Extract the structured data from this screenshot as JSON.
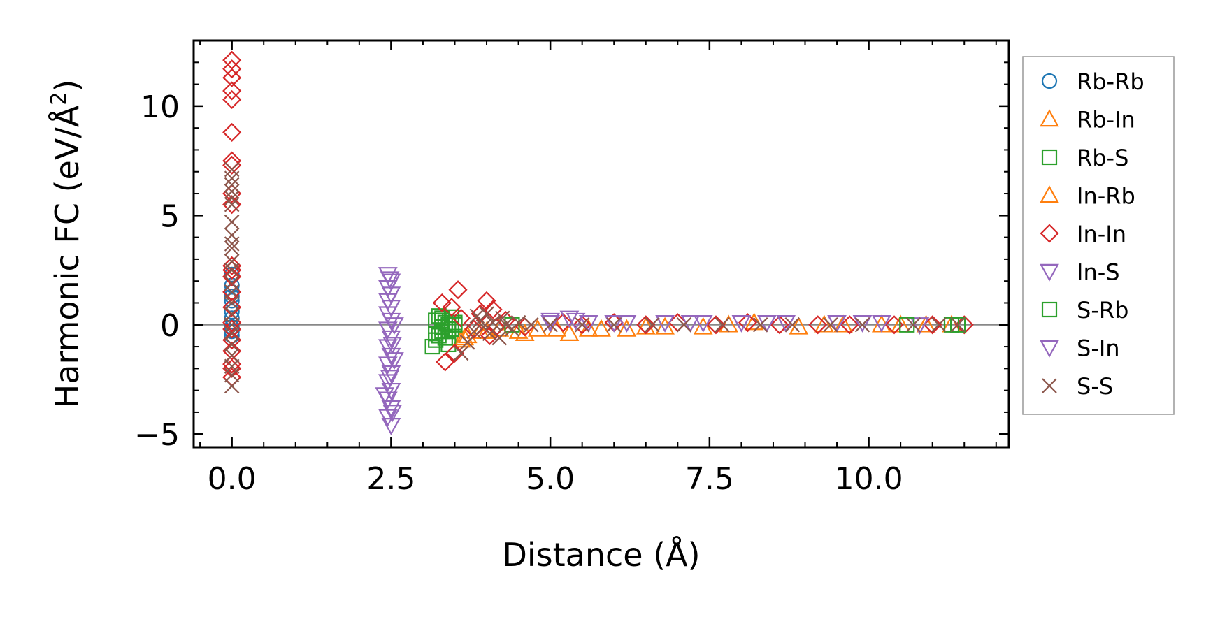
{
  "chart_data": {
    "type": "scatter",
    "xlabel": "Distance (Å)",
    "ylabel_main": "Harmonic FC (eV/Å",
    "ylabel_sup": "2",
    "ylabel_close": ")",
    "xlim": [
      -0.6,
      12.2
    ],
    "ylim": [
      -5.6,
      13.0
    ],
    "xticks": [
      0,
      2.5,
      5,
      7.5,
      10
    ],
    "xtick_labels": [
      "0.0",
      "2.5",
      "5.0",
      "7.5",
      "10.0"
    ],
    "yticks": [
      -5,
      0,
      5,
      10
    ],
    "ytick_labels": [
      "−5",
      "0",
      "5",
      "10"
    ],
    "grid": false,
    "zero_line": true,
    "legend_position": "right outside",
    "colors": {
      "Rb-Rb": "#1f77b4",
      "Rb-In": "#ff7f0e",
      "Rb-S": "#2ca02c",
      "In-Rb": "#ff7f0e",
      "In-In": "#d62728",
      "In-S": "#9467bd",
      "S-Rb": "#2ca02c",
      "S-In": "#9467bd",
      "S-S": "#8c564b",
      "zero_line": "#888888"
    },
    "series": [
      {
        "name": "Rb-Rb",
        "marker": "circle",
        "points": [
          [
            0,
            2.3
          ],
          [
            0,
            1.8
          ],
          [
            0,
            1.5
          ],
          [
            0,
            1.3
          ],
          [
            0,
            1.1
          ],
          [
            0,
            0.6
          ],
          [
            0,
            0.3
          ],
          [
            0,
            -0.1
          ],
          [
            0,
            -0.3
          ],
          [
            0,
            -0.5
          ]
        ]
      },
      {
        "name": "Rb-In",
        "marker": "triangle-up",
        "points": [
          [
            3.6,
            -0.7
          ],
          [
            3.7,
            -0.5
          ],
          [
            3.9,
            -0.3
          ],
          [
            4.2,
            -0.2
          ],
          [
            4.5,
            -0.3
          ],
          [
            4.6,
            -0.4
          ],
          [
            5.1,
            -0.2
          ],
          [
            5.3,
            -0.4
          ],
          [
            5.8,
            -0.2
          ],
          [
            6.2,
            -0.2
          ],
          [
            6.8,
            -0.1
          ],
          [
            7.4,
            -0.1
          ],
          [
            8.2,
            0.1
          ],
          [
            8.9,
            -0.1
          ],
          [
            9.6,
            0.0
          ],
          [
            10.2,
            0.0
          ],
          [
            10.9,
            0.0
          ],
          [
            11.3,
            0.0
          ]
        ]
      },
      {
        "name": "Rb-S",
        "marker": "square",
        "points": [
          [
            3.15,
            -1.0
          ],
          [
            3.2,
            -0.7
          ],
          [
            3.25,
            -0.5
          ],
          [
            3.3,
            -0.3
          ],
          [
            3.3,
            -0.1
          ],
          [
            3.35,
            0.1
          ],
          [
            3.3,
            0.3
          ],
          [
            3.4,
            0.0
          ],
          [
            3.45,
            -0.2
          ],
          [
            3.5,
            0.1
          ],
          [
            3.25,
            0.4
          ],
          [
            3.35,
            -0.6
          ],
          [
            3.4,
            -0.9
          ],
          [
            3.2,
            0.2
          ],
          [
            3.45,
            0.35
          ]
        ]
      },
      {
        "name": "In-Rb",
        "marker": "triangle-up",
        "points": [
          [
            3.65,
            -0.6
          ],
          [
            4.0,
            -0.3
          ],
          [
            4.8,
            -0.2
          ],
          [
            5.6,
            -0.2
          ],
          [
            6.5,
            -0.1
          ],
          [
            7.8,
            0.0
          ],
          [
            9.3,
            0.0
          ],
          [
            10.5,
            0.0
          ]
        ]
      },
      {
        "name": "In-In",
        "marker": "diamond",
        "points": [
          [
            0,
            12.1
          ],
          [
            0,
            11.7
          ],
          [
            0,
            11.3
          ],
          [
            0,
            10.7
          ],
          [
            0,
            10.3
          ],
          [
            0,
            8.8
          ],
          [
            0,
            7.5
          ],
          [
            0,
            7.3
          ],
          [
            0,
            6.0
          ],
          [
            0,
            5.5
          ],
          [
            0,
            2.7
          ],
          [
            0,
            2.5
          ],
          [
            0,
            2.2
          ],
          [
            0,
            1.5
          ],
          [
            0,
            0.8
          ],
          [
            0,
            0.1
          ],
          [
            0,
            -0.2
          ],
          [
            0,
            -0.7
          ],
          [
            0,
            -1.2
          ],
          [
            0,
            -1.8
          ],
          [
            0,
            -2.0
          ],
          [
            0,
            -2.4
          ],
          [
            3.3,
            1.0
          ],
          [
            3.35,
            -1.7
          ],
          [
            3.45,
            0.8
          ],
          [
            3.5,
            -1.3
          ],
          [
            3.55,
            1.6
          ],
          [
            3.6,
            0.3
          ],
          [
            3.8,
            -0.2
          ],
          [
            3.9,
            0.5
          ],
          [
            4.0,
            1.1
          ],
          [
            4.05,
            -0.5
          ],
          [
            4.1,
            0.7
          ],
          [
            4.15,
            -0.1
          ],
          [
            4.3,
            0.2
          ],
          [
            4.6,
            -0.1
          ],
          [
            5.2,
            0.1
          ],
          [
            5.5,
            0.0
          ],
          [
            6.0,
            0.1
          ],
          [
            6.5,
            0.0
          ],
          [
            7.0,
            0.1
          ],
          [
            7.6,
            0.0
          ],
          [
            8.1,
            0.1
          ],
          [
            8.6,
            0.0
          ],
          [
            9.2,
            0.0
          ],
          [
            9.7,
            0.0
          ],
          [
            10.4,
            0.0
          ],
          [
            11.0,
            0.0
          ],
          [
            11.5,
            0.0
          ]
        ]
      },
      {
        "name": "In-S",
        "marker": "triangle-down",
        "points": [
          [
            2.45,
            2.3
          ],
          [
            2.5,
            2.0
          ],
          [
            2.45,
            1.7
          ],
          [
            2.5,
            1.4
          ],
          [
            2.45,
            1.1
          ],
          [
            2.5,
            0.8
          ],
          [
            2.45,
            0.5
          ],
          [
            2.5,
            0.2
          ],
          [
            2.45,
            -0.2
          ],
          [
            2.5,
            -0.6
          ],
          [
            2.45,
            -1.0
          ],
          [
            2.5,
            -1.4
          ],
          [
            2.45,
            -1.8
          ],
          [
            2.5,
            -2.2
          ],
          [
            2.45,
            -2.6
          ],
          [
            2.5,
            -3.0
          ],
          [
            2.45,
            -3.4
          ],
          [
            2.5,
            -3.8
          ],
          [
            2.45,
            -4.2
          ],
          [
            2.5,
            -4.6
          ],
          [
            2.55,
            -1.6
          ],
          [
            2.55,
            0.0
          ],
          [
            2.4,
            -3.2
          ],
          [
            5.0,
            0.2
          ],
          [
            5.3,
            0.3
          ],
          [
            5.6,
            0.1
          ],
          [
            6.2,
            0.1
          ],
          [
            6.8,
            0.1
          ],
          [
            7.4,
            0.1
          ],
          [
            8.0,
            0.1
          ],
          [
            8.7,
            0.1
          ],
          [
            9.5,
            0.1
          ],
          [
            10.2,
            0.1
          ],
          [
            10.8,
            0.0
          ]
        ]
      },
      {
        "name": "S-Rb",
        "marker": "square",
        "points": [
          [
            3.2,
            -0.4
          ],
          [
            3.3,
            0.2
          ],
          [
            3.4,
            -0.3
          ],
          [
            3.5,
            0.0
          ],
          [
            4.4,
            0.0
          ],
          [
            10.6,
            0.0
          ],
          [
            11.3,
            0.0
          ],
          [
            11.4,
            0.0
          ]
        ]
      },
      {
        "name": "S-In",
        "marker": "triangle-down",
        "points": [
          [
            2.48,
            2.1
          ],
          [
            2.52,
            -0.9
          ],
          [
            2.48,
            -2.4
          ],
          [
            2.52,
            -4.0
          ],
          [
            5.0,
            0.1
          ],
          [
            5.4,
            0.2
          ],
          [
            6.0,
            0.1
          ],
          [
            7.2,
            0.1
          ],
          [
            8.4,
            0.1
          ],
          [
            9.9,
            0.1
          ]
        ]
      },
      {
        "name": "S-S",
        "marker": "x",
        "points": [
          [
            0,
            7.1
          ],
          [
            0,
            6.7
          ],
          [
            0,
            6.4
          ],
          [
            0,
            6.1
          ],
          [
            0,
            5.8
          ],
          [
            0,
            5.5
          ],
          [
            0,
            4.7
          ],
          [
            0,
            4.1
          ],
          [
            0,
            3.7
          ],
          [
            0,
            3.5
          ],
          [
            0,
            2.9
          ],
          [
            0,
            2.5
          ],
          [
            0,
            1.9
          ],
          [
            0,
            1.5
          ],
          [
            0,
            1.0
          ],
          [
            0,
            0.5
          ],
          [
            0,
            0.0
          ],
          [
            0,
            -0.4
          ],
          [
            0,
            -0.9
          ],
          [
            0,
            -1.4
          ],
          [
            0,
            -1.9
          ],
          [
            0,
            -2.3
          ],
          [
            0,
            -2.8
          ],
          [
            3.6,
            -1.3
          ],
          [
            3.7,
            -0.8
          ],
          [
            3.8,
            -0.3
          ],
          [
            3.85,
            0.4
          ],
          [
            3.9,
            0.2
          ],
          [
            3.95,
            -0.1
          ],
          [
            4.0,
            0.5
          ],
          [
            4.05,
            -0.4
          ],
          [
            4.1,
            0.1
          ],
          [
            4.2,
            -0.6
          ],
          [
            4.25,
            0.3
          ],
          [
            4.3,
            0.0
          ],
          [
            4.4,
            -0.2
          ],
          [
            4.5,
            0.1
          ],
          [
            4.7,
            0.0
          ],
          [
            5.0,
            0.0
          ],
          [
            5.5,
            0.0
          ],
          [
            6.0,
            0.0
          ],
          [
            6.6,
            0.0
          ],
          [
            7.1,
            0.0
          ],
          [
            7.7,
            0.0
          ],
          [
            8.3,
            0.0
          ],
          [
            8.8,
            0.0
          ],
          [
            9.4,
            0.0
          ],
          [
            9.9,
            0.0
          ],
          [
            10.7,
            0.0
          ],
          [
            11.1,
            0.0
          ],
          [
            11.4,
            0.0
          ]
        ]
      }
    ]
  }
}
